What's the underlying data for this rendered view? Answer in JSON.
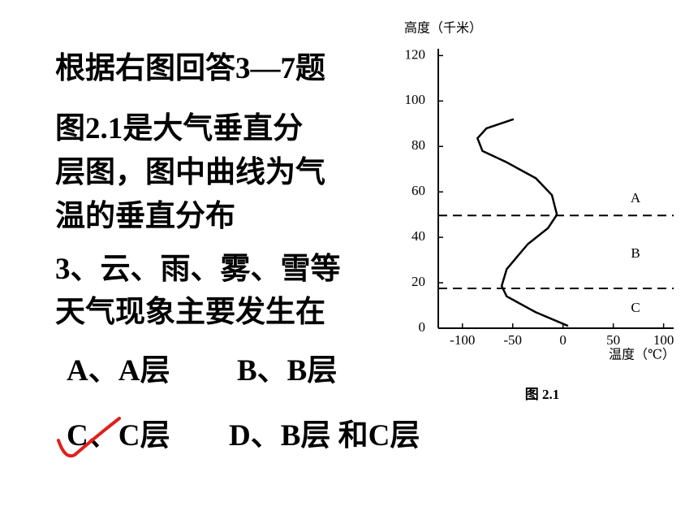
{
  "slide": {
    "intro": "根据右图回答3—7题",
    "desc_lines": [
      "图2.1是大气垂直分",
      "层图，图中曲线为气",
      "温的垂直分布"
    ],
    "question_lines": [
      "3、云、雨、雾、雪等",
      "天气现象主要发生在"
    ],
    "options": [
      "A、A层",
      "B、B层",
      "C、C层",
      "D、B层 和C层"
    ]
  },
  "chart_data": {
    "type": "line",
    "title": "图 2.1",
    "y_label": "高度（千米）",
    "x_label": "温度（℃）",
    "x": [
      5,
      -27,
      -56,
      -61,
      -56,
      -35,
      -15,
      -6,
      -11,
      -27,
      -56,
      -80,
      -85,
      -76,
      -49
    ],
    "series": [
      {
        "color": "#000000",
        "values": [
          1,
          7,
          14,
          18.6,
          26,
          37,
          44,
          50,
          58.6,
          66,
          73,
          78,
          83.6,
          88,
          92
        ]
      }
    ],
    "xlim": [
      -124,
      110
    ],
    "ylim": [
      0,
      123
    ],
    "xticks": [
      -100,
      -50,
      0,
      50,
      100
    ],
    "yticks": [
      0,
      20,
      40,
      60,
      80,
      100,
      120
    ],
    "boundaries": [
      17.5,
      49.6
    ],
    "layers": [
      "A",
      "B",
      "C"
    ]
  }
}
